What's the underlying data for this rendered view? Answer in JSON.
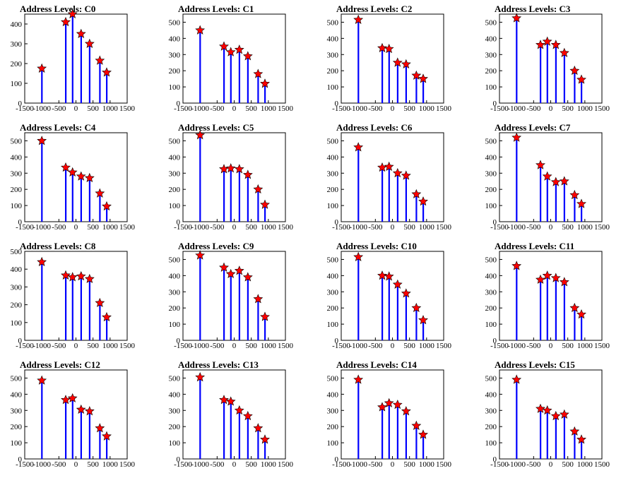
{
  "chart_data": [
    {
      "type": "bar",
      "title": "Address Levels: C0",
      "xlim": [
        -1500,
        1500
      ],
      "ylim": [
        0,
        450
      ],
      "xticks": [
        -1500,
        -1000,
        -500,
        0,
        500,
        1000,
        1500
      ],
      "yticks": [
        0,
        100,
        200,
        300,
        400
      ],
      "x": [
        -1000,
        -300,
        -100,
        150,
        400,
        700,
        900
      ],
      "peaks": [
        175,
        410,
        450,
        350,
        300,
        215,
        155
      ]
    },
    {
      "type": "bar",
      "title": "Address Levels: C1",
      "xlim": [
        -1500,
        1500
      ],
      "ylim": [
        0,
        550
      ],
      "xticks": [
        -1500,
        -1000,
        -500,
        0,
        500,
        1000,
        1500
      ],
      "yticks": [
        0,
        100,
        200,
        300,
        400,
        500
      ],
      "x": [
        -1000,
        -300,
        -100,
        150,
        400,
        700,
        900
      ],
      "peaks": [
        450,
        350,
        315,
        330,
        290,
        180,
        120
      ]
    },
    {
      "type": "bar",
      "title": "Address Levels: C2",
      "xlim": [
        -1500,
        1500
      ],
      "ylim": [
        0,
        550
      ],
      "xticks": [
        -1500,
        -1000,
        -500,
        0,
        500,
        1000,
        1500
      ],
      "yticks": [
        0,
        100,
        200,
        300,
        400,
        500
      ],
      "x": [
        -1000,
        -300,
        -100,
        150,
        400,
        700,
        900
      ],
      "peaks": [
        515,
        340,
        335,
        250,
        240,
        170,
        150
      ]
    },
    {
      "type": "bar",
      "title": "Address Levels: C3",
      "xlim": [
        -1500,
        1500
      ],
      "ylim": [
        0,
        550
      ],
      "xticks": [
        -1500,
        -1000,
        -500,
        0,
        500,
        1000,
        1500
      ],
      "yticks": [
        0,
        100,
        200,
        300,
        400,
        500
      ],
      "x": [
        -1000,
        -300,
        -100,
        150,
        400,
        700,
        900
      ],
      "peaks": [
        525,
        360,
        380,
        360,
        310,
        200,
        145
      ]
    },
    {
      "type": "bar",
      "title": "Address Levels: C4",
      "xlim": [
        -1500,
        1500
      ],
      "ylim": [
        0,
        550
      ],
      "xticks": [
        -1500,
        -1000,
        -500,
        0,
        500,
        1000,
        1500
      ],
      "yticks": [
        0,
        100,
        200,
        300,
        400,
        500
      ],
      "x": [
        -1000,
        -300,
        -100,
        150,
        400,
        700,
        900
      ],
      "peaks": [
        500,
        335,
        305,
        280,
        270,
        175,
        95
      ]
    },
    {
      "type": "bar",
      "title": "Address Levels: C5",
      "xlim": [
        -1500,
        1500
      ],
      "ylim": [
        0,
        550
      ],
      "xticks": [
        -1500,
        -1000,
        -500,
        0,
        500,
        1000,
        1500
      ],
      "yticks": [
        0,
        100,
        200,
        300,
        400,
        500
      ],
      "x": [
        -1000,
        -300,
        -100,
        150,
        400,
        700,
        900
      ],
      "peaks": [
        535,
        325,
        330,
        325,
        290,
        200,
        105
      ]
    },
    {
      "type": "bar",
      "title": "Address Levels: C6",
      "xlim": [
        -1500,
        1500
      ],
      "ylim": [
        0,
        550
      ],
      "xticks": [
        -1500,
        -1000,
        -500,
        0,
        500,
        1000,
        1500
      ],
      "yticks": [
        0,
        100,
        200,
        300,
        400,
        500
      ],
      "x": [
        -1000,
        -300,
        -100,
        150,
        400,
        700,
        900
      ],
      "peaks": [
        460,
        335,
        340,
        300,
        285,
        170,
        125
      ]
    },
    {
      "type": "bar",
      "title": "Address Levels: C7",
      "xlim": [
        -1500,
        1500
      ],
      "ylim": [
        0,
        550
      ],
      "xticks": [
        -1500,
        -1000,
        -500,
        0,
        500,
        1000,
        1500
      ],
      "yticks": [
        0,
        100,
        200,
        300,
        400,
        500
      ],
      "x": [
        -1000,
        -300,
        -100,
        150,
        400,
        700,
        900
      ],
      "peaks": [
        520,
        350,
        280,
        245,
        250,
        165,
        110
      ]
    },
    {
      "type": "bar",
      "title": "Address Levels: C8",
      "xlim": [
        -1500,
        1500
      ],
      "ylim": [
        0,
        500
      ],
      "xticks": [
        -1500,
        -1000,
        -500,
        0,
        500,
        1000,
        1500
      ],
      "yticks": [
        0,
        100,
        200,
        300,
        400,
        500
      ],
      "x": [
        -1000,
        -300,
        -100,
        150,
        400,
        700,
        900
      ],
      "peaks": [
        440,
        365,
        355,
        360,
        345,
        210,
        130
      ]
    },
    {
      "type": "bar",
      "title": "Address Levels: C9",
      "xlim": [
        -1500,
        1500
      ],
      "ylim": [
        0,
        550
      ],
      "xticks": [
        -1500,
        -1000,
        -500,
        0,
        500,
        1000,
        1500
      ],
      "yticks": [
        0,
        100,
        200,
        300,
        400,
        500
      ],
      "x": [
        -1000,
        -300,
        -100,
        150,
        400,
        700,
        900
      ],
      "peaks": [
        525,
        450,
        410,
        430,
        390,
        255,
        145
      ]
    },
    {
      "type": "bar",
      "title": "Address Levels: C10",
      "xlim": [
        -1500,
        1500
      ],
      "ylim": [
        0,
        550
      ],
      "xticks": [
        -1500,
        -1000,
        -500,
        0,
        500,
        1000,
        1500
      ],
      "yticks": [
        0,
        100,
        200,
        300,
        400,
        500
      ],
      "x": [
        -1000,
        -300,
        -100,
        150,
        400,
        700,
        900
      ],
      "peaks": [
        515,
        400,
        395,
        345,
        290,
        200,
        125
      ]
    },
    {
      "type": "bar",
      "title": "Address Levels: C11",
      "xlim": [
        -1500,
        1500
      ],
      "ylim": [
        0,
        550
      ],
      "xticks": [
        -1500,
        -1000,
        -500,
        0,
        500,
        1000,
        1500
      ],
      "yticks": [
        0,
        100,
        200,
        300,
        400,
        500
      ],
      "x": [
        -1000,
        -300,
        -100,
        150,
        400,
        700,
        900
      ],
      "peaks": [
        460,
        375,
        400,
        385,
        360,
        200,
        160
      ]
    },
    {
      "type": "bar",
      "title": "Address Levels: C12",
      "xlim": [
        -1500,
        1500
      ],
      "ylim": [
        0,
        550
      ],
      "xticks": [
        -1500,
        -1000,
        -500,
        0,
        500,
        1000,
        1500
      ],
      "yticks": [
        0,
        100,
        200,
        300,
        400,
        500
      ],
      "x": [
        -1000,
        -300,
        -100,
        150,
        400,
        700,
        900
      ],
      "peaks": [
        485,
        365,
        375,
        305,
        295,
        190,
        140
      ]
    },
    {
      "type": "bar",
      "title": "Address Levels: C13",
      "xlim": [
        -1500,
        1500
      ],
      "ylim": [
        0,
        550
      ],
      "xticks": [
        -1500,
        -1000,
        -500,
        0,
        500,
        1000,
        1500
      ],
      "yticks": [
        0,
        100,
        200,
        300,
        400,
        500
      ],
      "x": [
        -1000,
        -300,
        -100,
        150,
        400,
        700,
        900
      ],
      "peaks": [
        505,
        365,
        355,
        300,
        265,
        190,
        120
      ]
    },
    {
      "type": "bar",
      "title": "Address Levels: C14",
      "xlim": [
        -1500,
        1500
      ],
      "ylim": [
        0,
        550
      ],
      "xticks": [
        -1500,
        -1000,
        -500,
        0,
        500,
        1000,
        1500
      ],
      "yticks": [
        0,
        100,
        200,
        300,
        400,
        500
      ],
      "x": [
        -1000,
        -300,
        -100,
        150,
        400,
        700,
        900
      ],
      "peaks": [
        490,
        320,
        345,
        335,
        295,
        205,
        150
      ]
    },
    {
      "type": "bar",
      "title": "Address Levels: C15",
      "xlim": [
        -1500,
        1500
      ],
      "ylim": [
        0,
        550
      ],
      "xticks": [
        -1500,
        -1000,
        -500,
        0,
        500,
        1000,
        1500
      ],
      "yticks": [
        0,
        100,
        200,
        300,
        400,
        500
      ],
      "x": [
        -1000,
        -300,
        -100,
        150,
        400,
        700,
        900
      ],
      "peaks": [
        490,
        310,
        300,
        265,
        275,
        170,
        120
      ]
    }
  ],
  "colors": {
    "bar": "#0000ff",
    "marker": "#ff0000",
    "axis": "#000000",
    "background": "#ffffff"
  }
}
